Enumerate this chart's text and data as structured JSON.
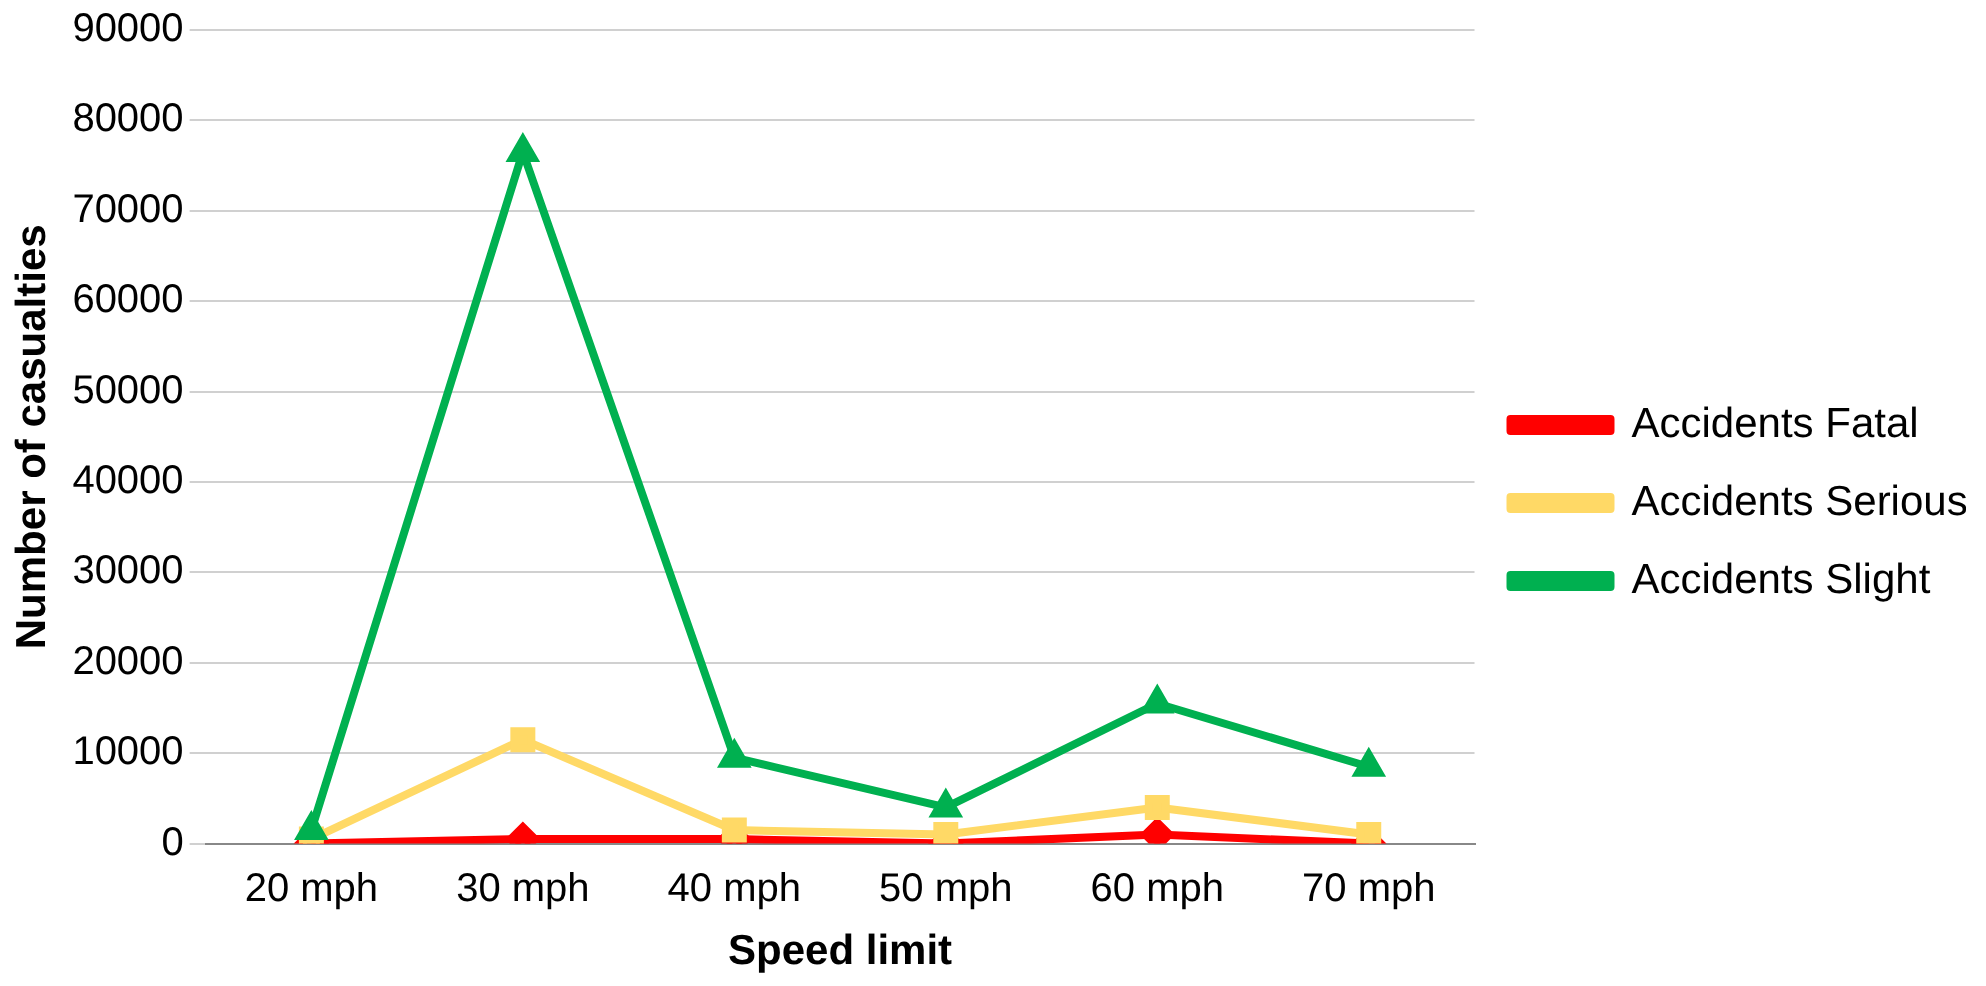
{
  "chart_data": {
    "type": "line",
    "xlabel": "Speed limit",
    "ylabel": "Number of casualties",
    "categories": [
      "20 mph",
      "30 mph",
      "40 mph",
      "50 mph",
      "60 mph",
      "70 mph"
    ],
    "series": [
      {
        "name": "Accidents Fatal",
        "color": "#ff0000",
        "marker": "diamond",
        "values": [
          0,
          500,
          500,
          0,
          1000,
          0
        ]
      },
      {
        "name": "Accidents Serious",
        "color": "#ffd966",
        "marker": "square",
        "values": [
          500,
          11500,
          1500,
          1000,
          4000,
          1000
        ]
      },
      {
        "name": "Accidents Slight",
        "color": "#00b050",
        "marker": "triangle",
        "values": [
          1500,
          76500,
          9500,
          4000,
          15500,
          8500
        ]
      }
    ],
    "ylim": [
      0,
      90000
    ],
    "yticks": [
      0,
      10000,
      20000,
      30000,
      40000,
      50000,
      60000,
      70000,
      80000,
      90000
    ],
    "grid": "y",
    "legend": "right",
    "line_style": "solid"
  }
}
